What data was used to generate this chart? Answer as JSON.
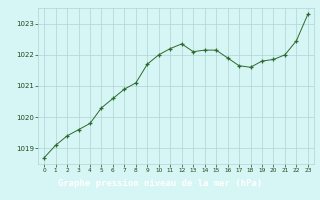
{
  "x": [
    0,
    1,
    2,
    3,
    4,
    5,
    6,
    7,
    8,
    9,
    10,
    11,
    12,
    13,
    14,
    15,
    16,
    17,
    18,
    19,
    20,
    21,
    22,
    23
  ],
  "y": [
    1018.7,
    1019.1,
    1019.4,
    1019.6,
    1019.8,
    1020.3,
    1020.6,
    1020.9,
    1021.1,
    1021.7,
    1022.0,
    1022.2,
    1022.35,
    1022.1,
    1022.15,
    1022.15,
    1021.9,
    1021.65,
    1021.6,
    1021.8,
    1021.85,
    1022.0,
    1022.45,
    1023.3
  ],
  "line_color": "#2d6a2d",
  "marker": "+",
  "marker_color": "#2d6a2d",
  "bg_color": "#d6f5f5",
  "grid_color": "#aed4d4",
  "tick_color": "#1a4a1a",
  "ylabel_bar_color": "#3a7a3a",
  "ylabel_text_color": "#ffffff",
  "xlabel_text": "Graphe pression niveau de la mer (hPa)",
  "ylim": [
    1018.5,
    1023.5
  ],
  "xlim": [
    -0.5,
    23.5
  ],
  "yticks": [
    1019,
    1020,
    1021,
    1022,
    1023
  ],
  "xticks": [
    0,
    1,
    2,
    3,
    4,
    5,
    6,
    7,
    8,
    9,
    10,
    11,
    12,
    13,
    14,
    15,
    16,
    17,
    18,
    19,
    20,
    21,
    22,
    23
  ],
  "fig_bg": "#d6f5f5"
}
